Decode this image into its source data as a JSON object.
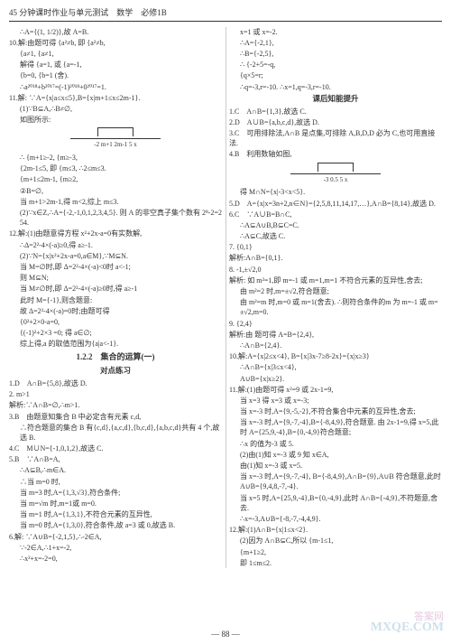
{
  "header": "45 分钟课时作业与单元测试　数学　必修1B",
  "pageNum": "— 88 —",
  "watermark1": "MXQE.COM",
  "watermark2": "答案网",
  "col1": {
    "l1": "∴A={(1, 1/2)},故 A=B.",
    "l2": "10.解:由题可得 {a²≠b, 即 {a²≠b,",
    "l3": "                  {a≠1,    {a≠1,",
    "l4": "解得 {a=1, 或 {a=-1,",
    "l5": "       {b=0,    {b=1  (舍).",
    "l6": "∴a²⁰¹⁸+b²⁰¹⁷=(-1)²⁰¹⁸+0²⁰¹⁷=1.",
    "l7": "11.解: ∵A={x|a≤x≤5},B={x|m+1≤x≤2m-1}.",
    "l8": "(1)∵B⊆A,∴B≠∅,",
    "l9": "如图所示:",
    "l10": "-2 m+1    2m-1 5     x",
    "l11": "∴ {m+1≥-2,     {m≥-3,",
    "l12": "   {2m-1≤5,  即 {m≤3,  ∴2≤m≤3.",
    "l13": "   {m+1≤2m-1,  {m≥2,",
    "l14": "②B=∅,",
    "l15": "当 m+1>2m-1,得 m<2,综上 m≤3.",
    "l16": "(2)∵x∈Z,∴A={-2,-1,0,1,2,3,4,5}. 则 A 的非空真子集个数有 2⁸-2=254.",
    "l17": "12.解:(1)由题意得方程 x²+2x-a=0有实数解,",
    "l18": "∴Δ=2²-4×(-a)≥0,得 a≥-1.",
    "l19": "(2)∵N={x|x²+2x-a=0,a∈M},∵M⊆N.",
    "l20": "当 M=∅时,即 Δ=2²-4×(-a)<0时 a<-1;",
    "l21": "则 M⊆N;",
    "l22": "当 M≠∅时,即 Δ=2²-4×(-a)≥0时,得 a≥-1",
    "l23": "此时 M={-1},则含题意:",
    "l24": "故 Δ=2²-4×(-a)=0时;由题可得",
    "l25": "{0²+2×0-a=0,",
    "l26": "{(-1)²+2×3 =0;  得 a∈∅;",
    "l27": "综上得,a 的取值范围为{a|a<-1}.",
    "s1": "1.2.2　集合的运算(一)",
    "s2": "对点练习",
    "l28": "1.D　A∩B={5,8},故选 D.",
    "l29": "2. m>1",
    "l30": "解析:∵A∩B=∅,∴m>1.",
    "l31": "3.B　由题意知集合 B 中必定含有元素 c,d,",
    "l32": "∴符合题意的集合 B 有{c,d},{a,c,d},{b,c,d},{a,b,c,d}共有 4 个,故选 B.",
    "l33": "4.C　M∪N={-1,0,1,2},故选 C.",
    "l34": "5.B　∵A∩B=A,",
    "l35": "∴A⊆B,∴m∈A.",
    "l36": "∴当 m=0 时,",
    "l37": "当 m=3 时,A={1,3,√3},符合条件;",
    "l38": "当 m=√m 时,m=1或 m=0.",
    "l39": "当 m=1 时,A={1,3,1},不符合元素的互异性,",
    "l40": "当 m=0 时,A={1,3,0},符合条件,故 a=3 或 0,故选 B.",
    "l41": "6.解: ∵A∪B={-2,1,5},∴-2∈A,",
    "l42": "∵-2∈A,∴1+x=-2,",
    "l43": "∴x²+x=-2=0,",
    "l44": "x=1 或 x=-2."
  },
  "col2": {
    "l1": "∴A={-2,1},",
    "l2": "∴B={-2,5},",
    "l3": "∴ {-2+5=-q,",
    "l4": "   {q×5=r;",
    "l5": "∴q=-3,r=-10. ∴x=1,q=-3,r=-10.",
    "s1": "课后知能提升",
    "l6": "1.C　A∩B={1,3},故选 C.",
    "l7": "2.D　A∪B={a,b,c,d},故选 D.",
    "l8": "3.C　可用排除法,A∩B 是点集,可排除 A,B,D,D 必为 C,也可用直接法.",
    "l9": "4.B　利用数轴如图,",
    "l10": "-3    0.5     5     x",
    "l11": "得 M∩N={x|-3<x<5}.",
    "l12": "5.D　A={x|x=3n+2,n∈N}={2,5,8,11,14,17,…},A∩B={8,14},故选 D.",
    "l13": "6.C　∵A∪B=B∩C,",
    "l14": "∴A⊆A∪B,B⊆C=C.",
    "l15": "∴A⊆C,故选 C.",
    "l16": "7. {0,1}",
    "l17": "解析:A∩B={0,1}.",
    "l18": "8. -1,±√2,0",
    "l19": "解析: 如 m²=1,即 m=-1 或 m=1,m=1 不符合元素的互异性,舍去;",
    "l20": "由 m²=2 时,m=±√2,符合题意;",
    "l21": "由 m²=m 时,m=0 或 m=1(舍去). ∴则符合条件的m 为 m=-1 或 m=±√2,m=0.",
    "l22": "9. {2,4}",
    "l23": "解析:由 题可得 A=B={2,4},",
    "l24": "∴A∩B={2,4}.",
    "l25": "10.解:A={x|2≤x<4}, B={x|3x-7≥8-2x}={x|x≥3}",
    "l26": "∴A∩B={x|3≤x<4},",
    "l27": "A∪B={x|x≥2}.",
    "l28": "11.解:(1)由题可得 x²=9 或 2x-1=9,",
    "l29": "当 x=3 得 x=3 或 x=-3;",
    "l30": "当 x=-3 时,A={9,-5,-2},不符合集合中元素的互异性,舍去;",
    "l31": "当 x=-3 时,A={9,-7,-4},B={-8,4,9},符合题意. 由 2x-1=9,得 x=5,此时 A={25,9,-4},B={0,-4,9}符合题意;",
    "l32": "∴x 的值为-3 或 5.",
    "l33": "(2)由(1)知 x=-3 或 9 知 x∈A,",
    "l34": "由(1)知 x=-3 或 x=5.",
    "l35": "当 x=-3 时,A={9,-7,-4}, B={-8,4,9},A∩B={9},A∪B 符合题意,此时 A∪B={9,4,8,-7,-4}.",
    "l36": "当 x=5 时,A={25,9,-4},B={0,-4,9},此时 A∩B={-4,9},不符题意,舍去.",
    "l37": "∴x=-3,A∪B={-8,-7,-4,4,9}.",
    "l38": "12.解:(1)A∩B={x|1≤x<2}.",
    "l39": "(2)因为 A∩B⊆C,所以 {m-1≤1,",
    "l40": "                        {m+1≥2,",
    "l41": "即 1≤m≤2."
  }
}
